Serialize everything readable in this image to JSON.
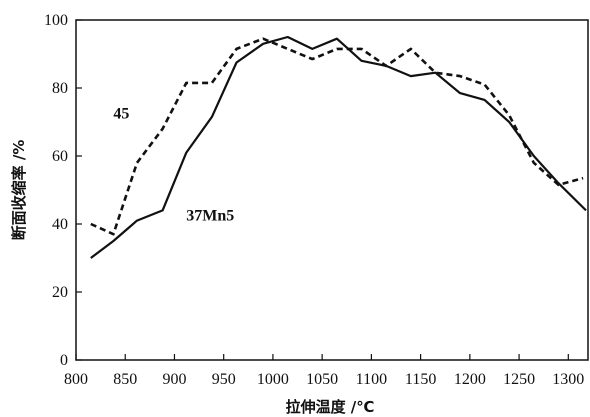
{
  "chart_data": {
    "type": "line",
    "xlabel": "拉伸温度 /℃",
    "ylabel": "断面收缩率 /%",
    "xlim": [
      800,
      1320
    ],
    "ylim": [
      0,
      100
    ],
    "xticks": [
      800,
      850,
      900,
      950,
      1000,
      1050,
      1100,
      1150,
      1200,
      1250,
      1300
    ],
    "yticks": [
      0,
      20,
      40,
      60,
      80,
      100
    ],
    "grid": false,
    "series": [
      {
        "name": "45",
        "style": "dashed",
        "color": "#111111",
        "x": [
          815,
          838,
          862,
          888,
          912,
          938,
          963,
          990,
          1015,
          1040,
          1065,
          1090,
          1115,
          1140,
          1165,
          1190,
          1215,
          1240,
          1265,
          1290,
          1315
        ],
        "y": [
          40,
          37,
          58,
          68,
          81.5,
          81.5,
          91.5,
          94.5,
          91.5,
          88.5,
          91.5,
          91.5,
          86.5,
          91.5,
          84.5,
          83.5,
          81,
          72,
          58,
          51.5,
          53.5
        ]
      },
      {
        "name": "37Mn5",
        "style": "solid",
        "color": "#111111",
        "x": [
          815,
          838,
          862,
          888,
          912,
          938,
          963,
          990,
          1015,
          1040,
          1065,
          1090,
          1115,
          1140,
          1165,
          1190,
          1215,
          1240,
          1265,
          1290,
          1318
        ],
        "y": [
          30,
          35,
          41,
          44,
          61,
          71.5,
          87.5,
          93,
          95,
          91.5,
          94.5,
          88,
          86.5,
          83.5,
          84.5,
          78.5,
          76.5,
          70,
          60,
          52,
          44
        ]
      }
    ],
    "annotations": [
      {
        "text": "45",
        "x": 838,
        "y": 71
      },
      {
        "text": "37Mn5",
        "x": 912,
        "y": 41
      }
    ]
  }
}
